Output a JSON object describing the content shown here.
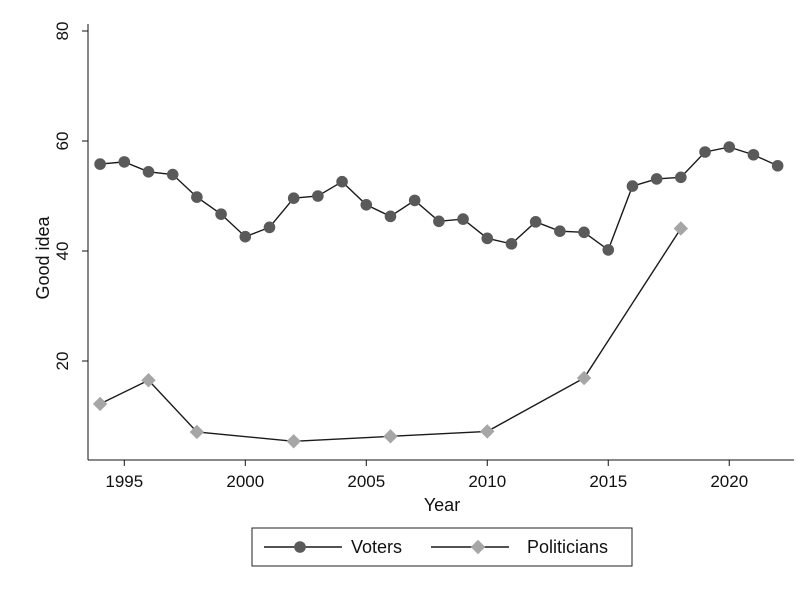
{
  "chart_data": {
    "type": "line",
    "title": "",
    "xlabel": "Year",
    "ylabel": "Good idea",
    "xlim": [
      1993.5,
      2022.8
    ],
    "ylim": [
      2,
      82
    ],
    "x_ticks": [
      1995,
      2000,
      2005,
      2010,
      2015,
      2020
    ],
    "y_ticks": [
      20,
      40,
      60,
      80
    ],
    "grid": false,
    "legend_position": "bottom",
    "series": [
      {
        "name": "Voters",
        "marker": "circle",
        "line_color": "#1a1a1a",
        "marker_color": "#5a5a5a",
        "points": [
          [
            1994,
            55.8
          ],
          [
            1995,
            56.2
          ],
          [
            1996,
            54.4
          ],
          [
            1997,
            53.9
          ],
          [
            1998,
            49.8
          ],
          [
            1999,
            46.7
          ],
          [
            2000,
            42.6
          ],
          [
            2001,
            44.3
          ],
          [
            2002,
            49.6
          ],
          [
            2003,
            50.0
          ],
          [
            2004,
            52.6
          ],
          [
            2005,
            48.4
          ],
          [
            2006,
            46.3
          ],
          [
            2007,
            49.2
          ],
          [
            2008,
            45.4
          ],
          [
            2009,
            45.8
          ],
          [
            2010,
            42.3
          ],
          [
            2011,
            41.3
          ],
          [
            2012,
            45.3
          ],
          [
            2013,
            43.6
          ],
          [
            2014,
            43.4
          ],
          [
            2015,
            40.2
          ],
          [
            2016,
            51.8
          ],
          [
            2017,
            53.1
          ],
          [
            2018,
            53.4
          ],
          [
            2019,
            58.0
          ],
          [
            2020,
            58.9
          ],
          [
            2021,
            57.5
          ],
          [
            2022,
            55.5
          ]
        ]
      },
      {
        "name": "Politicians",
        "marker": "diamond",
        "line_color": "#1a1a1a",
        "marker_color": "#a6a6a6",
        "points": [
          [
            1994,
            12.2
          ],
          [
            1996,
            16.5
          ],
          [
            1998,
            7.1
          ],
          [
            2002,
            5.4
          ],
          [
            2006,
            6.3
          ],
          [
            2010,
            7.2
          ],
          [
            2014,
            16.9
          ],
          [
            2018,
            44.1
          ]
        ]
      }
    ]
  }
}
